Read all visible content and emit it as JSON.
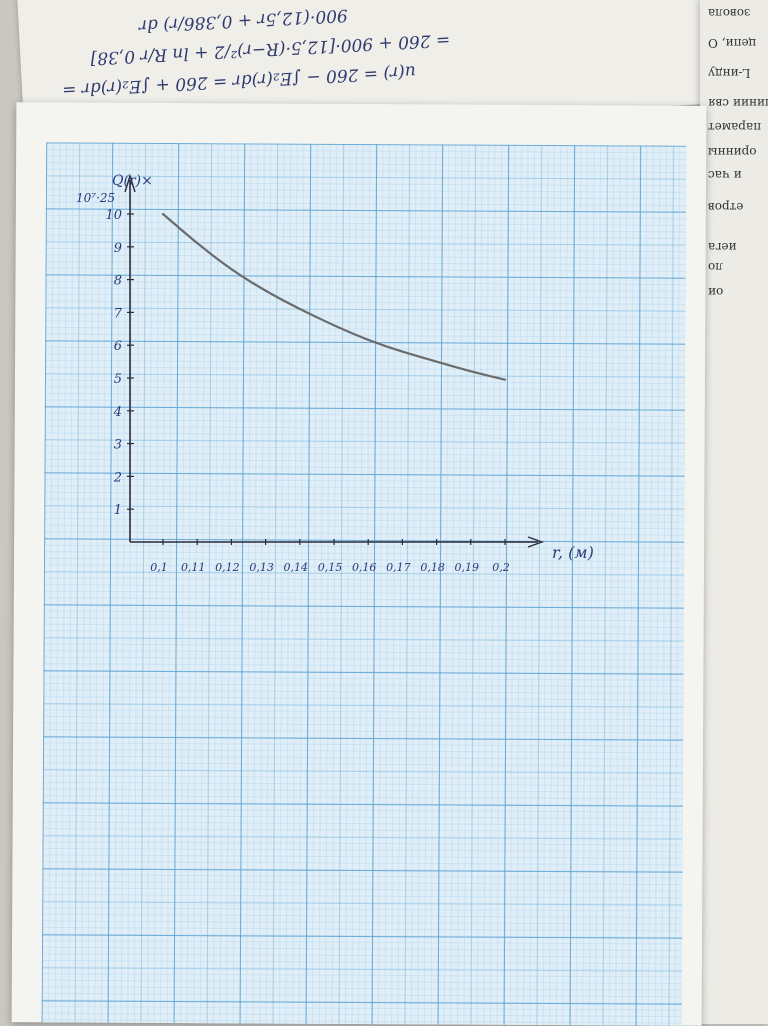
{
  "background_note_lines": [
    "u(r) = 260 − ∫E₂(r)dr = 260 + ∫E₂(r)dr =",
    "= 260 + 900·[12,5·(R−r)²/2 + ln R/r 0,38]",
    "900·(12,5r + 0,386/r) dr"
  ],
  "book_edge_words": [
    "зовола",
    "цепи, О",
    "L-инду",
    "линии свя",
    "парамет",
    "оринны",
    "и час",
    "етров",
    "иега",
    "ло",
    "ои"
  ],
  "chart_data": {
    "type": "line",
    "title": "",
    "ylabel": "Q(r)×",
    "ylabel_multiplier": "10⁷·25",
    "xlabel": "r, (м)",
    "x_ticks": [
      "0,1",
      "0,11",
      "0,12",
      "0,13",
      "0,14",
      "0,15",
      "0,16",
      "0,17",
      "0,18",
      "0,19",
      "0,2"
    ],
    "y_ticks": [
      "1",
      "2",
      "3",
      "4",
      "5",
      "6",
      "7",
      "8",
      "9",
      "10"
    ],
    "xlim": [
      0.1,
      0.2
    ],
    "ylim": [
      0,
      10
    ],
    "grid": true,
    "series": [
      {
        "x": [
          0.1,
          0.11,
          0.12,
          0.13,
          0.14,
          0.15,
          0.16,
          0.17,
          0.18,
          0.19,
          0.2
        ],
        "values": [
          10.0,
          9.1,
          8.3,
          7.65,
          7.1,
          6.6,
          6.15,
          5.8,
          5.5,
          5.2,
          4.95
        ]
      }
    ],
    "colors": {
      "line": "#6b6b6b",
      "axis": "#2a2a3a",
      "ink": "#2a3a7a"
    }
  }
}
